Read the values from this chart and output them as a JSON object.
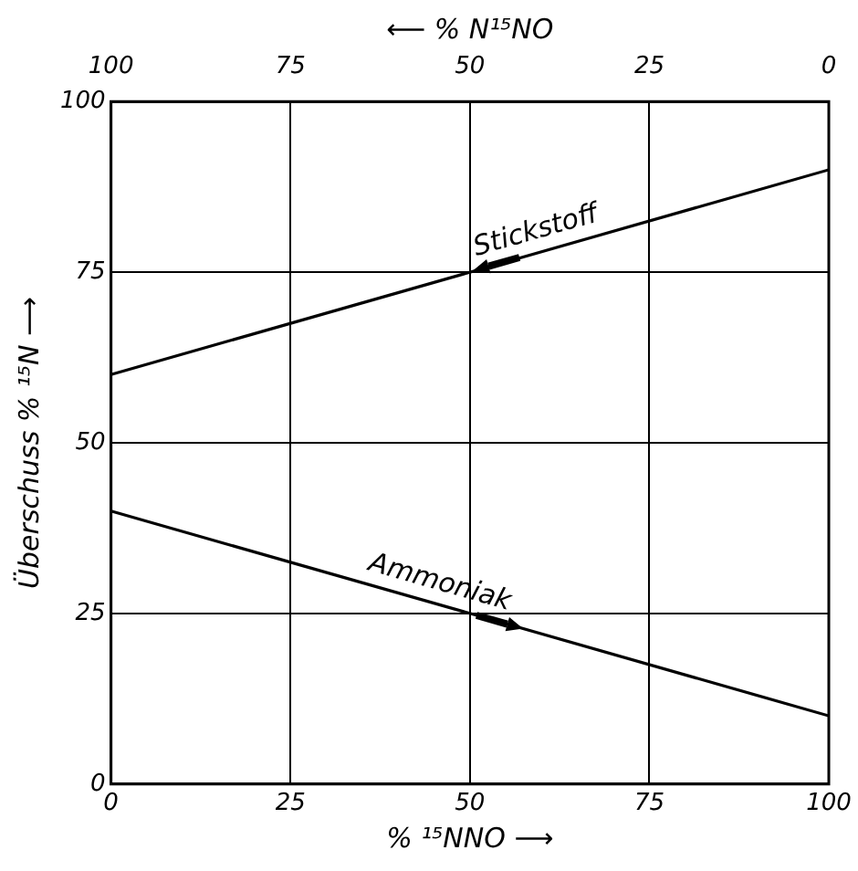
{
  "chart_data": {
    "type": "line",
    "xlabel": "% ¹⁵NNO ⟶",
    "x2label": "⟵ % N¹⁵NO",
    "ylabel": "Überschuss % ¹⁵N ⟶",
    "x": [
      0,
      100
    ],
    "series": [
      {
        "name": "Stickstoff",
        "color": "#000000",
        "values": [
          60,
          90
        ]
      },
      {
        "name": "Ammoniak",
        "color": "#000000",
        "values": [
          40,
          10
        ]
      }
    ],
    "xlim": [
      0,
      100
    ],
    "xticks": [
      0,
      25,
      50,
      75,
      100
    ],
    "x2lim": [
      100,
      0
    ],
    "x2ticks": [
      100,
      75,
      50,
      25,
      0
    ],
    "ylim": [
      0,
      100
    ],
    "yticks": [
      0,
      25,
      50,
      75,
      100
    ],
    "grid": true,
    "legend": false,
    "marker": "none",
    "line_style": "solid"
  }
}
